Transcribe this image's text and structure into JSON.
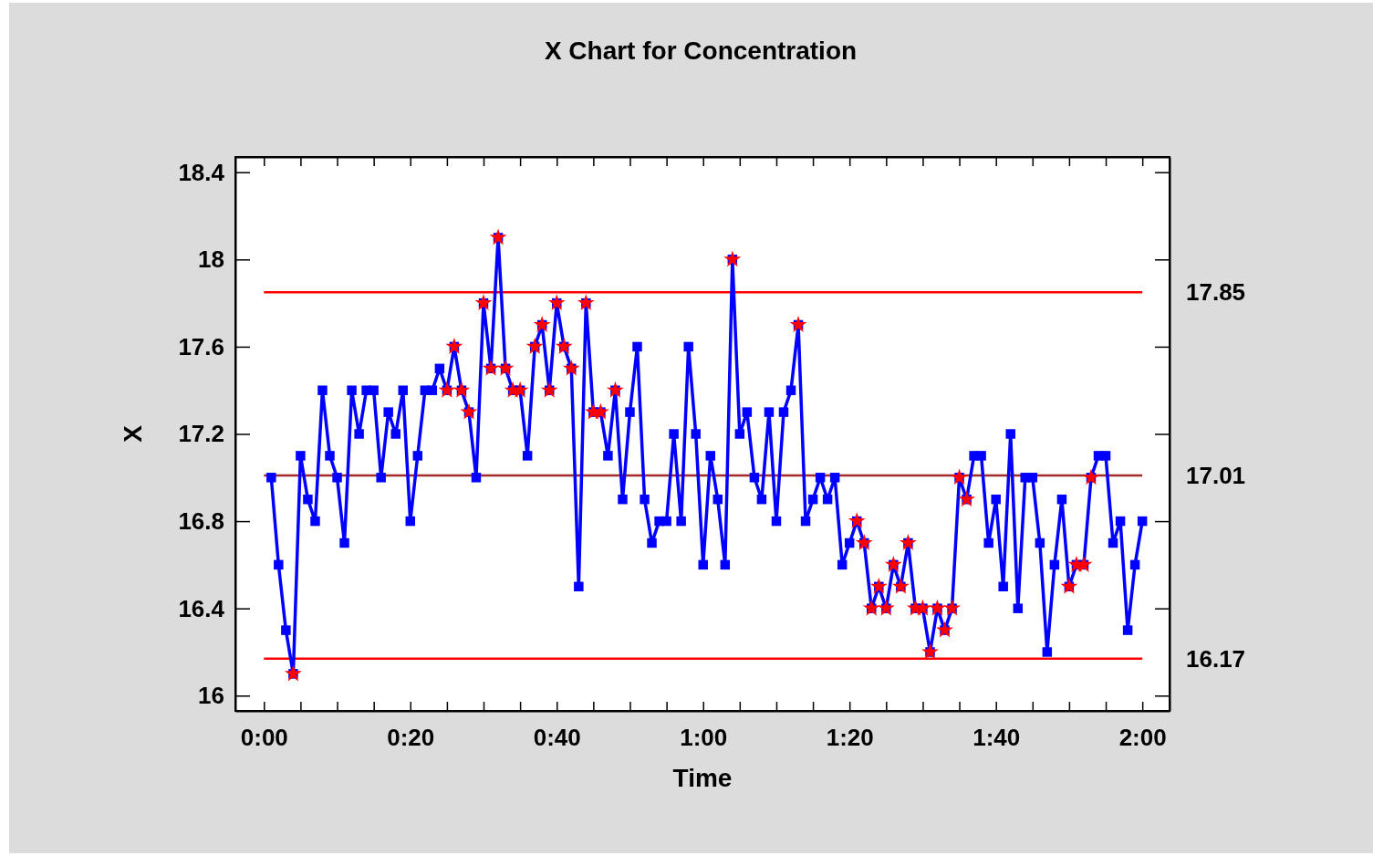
{
  "chart_data": {
    "type": "line",
    "title": "X Chart for Concentration",
    "xlabel": "Time",
    "ylabel": "X",
    "x": [
      0.0167,
      0.0333,
      0.05,
      0.0667,
      0.0833,
      0.1,
      0.1167,
      0.1333,
      0.15,
      0.1667,
      0.1833,
      0.2,
      0.2167,
      0.2333,
      0.25,
      0.2667,
      0.2833,
      0.3,
      0.3167,
      0.3333,
      0.35,
      0.3667,
      0.3833,
      0.4,
      0.4167,
      0.4333,
      0.45,
      0.4667,
      0.4833,
      0.5,
      0.5167,
      0.5333,
      0.55,
      0.5667,
      0.5833,
      0.6,
      0.6167,
      0.6333,
      0.65,
      0.6667,
      0.6833,
      0.7,
      0.7167,
      0.7333,
      0.75,
      0.7667,
      0.7833,
      0.8,
      0.8167,
      0.8333,
      0.85,
      0.8667,
      0.8833,
      0.9,
      0.9167,
      0.9333,
      0.95,
      0.9667,
      0.9833,
      1,
      1.0167,
      1.0333,
      1.05,
      1.0667,
      1.0833,
      1.1,
      1.1167,
      1.1333,
      1.15,
      1.1667,
      1.1833,
      1.2,
      1.2167,
      1.2333,
      1.25,
      1.2667,
      1.2833,
      1.3,
      1.3167,
      1.3333,
      1.35,
      1.3667,
      1.3833,
      1.4,
      1.4167,
      1.4333,
      1.45,
      1.4667,
      1.4833,
      1.5,
      1.5167,
      1.5333,
      1.55,
      1.5667,
      1.5833,
      1.6,
      1.6167,
      1.6333,
      1.65,
      1.6667,
      1.6833,
      1.7,
      1.7167,
      1.7333,
      1.75,
      1.7667,
      1.7833,
      1.8,
      1.8167,
      1.8333,
      1.85,
      1.8667,
      1.8833,
      1.9,
      1.9167,
      1.9333,
      1.95,
      1.9667,
      1.9833,
      2
    ],
    "series": [
      {
        "color": "#0000ff",
        "marker": "square",
        "values": [
          17.0,
          16.6,
          16.3,
          16.1,
          17.1,
          16.9,
          16.8,
          17.4,
          17.1,
          17.0,
          16.7,
          17.4,
          17.2,
          17.4,
          17.4,
          17.0,
          17.3,
          17.2,
          17.4,
          16.8,
          17.1,
          17.4,
          17.4,
          17.5,
          17.4,
          17.6,
          17.4,
          17.3,
          17.0,
          17.8,
          17.5,
          18.1,
          17.5,
          17.4,
          17.4,
          17.1,
          17.6,
          17.7,
          17.4,
          17.8,
          17.6,
          17.5,
          16.5,
          17.8,
          17.3,
          17.3,
          17.1,
          17.4,
          16.9,
          17.3,
          17.6,
          16.9,
          16.7,
          16.8,
          16.8,
          17.2,
          16.8,
          17.6,
          17.2,
          16.6,
          17.1,
          16.9,
          16.6,
          18.0,
          17.2,
          17.3,
          17.0,
          16.9,
          17.3,
          16.8,
          17.3,
          17.4,
          17.7,
          16.8,
          16.9,
          17.0,
          16.9,
          17.0,
          16.6,
          16.7,
          16.8,
          16.7,
          16.4,
          16.5,
          16.4,
          16.6,
          16.5,
          16.7,
          16.4,
          16.4,
          16.2,
          16.4,
          16.3,
          16.4,
          17.0,
          16.9,
          17.1,
          17.1,
          16.7,
          16.9,
          16.5,
          17.2,
          16.4,
          17.0,
          17.0,
          16.7,
          16.2,
          16.6,
          16.9,
          16.5,
          16.6,
          16.6,
          17.0,
          17.1,
          17.1,
          16.7,
          16.8,
          16.3,
          16.6,
          16.8
        ]
      },
      {
        "type": "scatter",
        "color": "#ff0000",
        "marker": "star",
        "values": [
          null,
          null,
          null,
          16.1,
          null,
          null,
          null,
          null,
          null,
          null,
          null,
          null,
          null,
          null,
          null,
          null,
          null,
          null,
          null,
          null,
          null,
          null,
          null,
          null,
          17.4,
          17.6,
          17.4,
          17.3,
          null,
          17.8,
          17.5,
          18.1,
          17.5,
          17.4,
          17.4,
          null,
          17.6,
          17.7,
          17.4,
          17.8,
          17.6,
          17.5,
          null,
          17.8,
          17.3,
          17.3,
          null,
          17.4,
          null,
          null,
          null,
          null,
          null,
          null,
          null,
          null,
          null,
          null,
          null,
          null,
          null,
          null,
          null,
          18.0,
          null,
          null,
          null,
          null,
          null,
          null,
          null,
          null,
          17.7,
          null,
          null,
          null,
          null,
          null,
          null,
          null,
          16.8,
          16.7,
          16.4,
          16.5,
          16.4,
          16.6,
          16.5,
          16.7,
          16.4,
          16.4,
          16.2,
          16.4,
          16.3,
          16.4,
          17.0,
          16.9,
          null,
          null,
          null,
          null,
          null,
          null,
          null,
          null,
          null,
          null,
          null,
          null,
          null,
          16.5,
          16.6,
          16.6,
          17.0,
          null,
          null,
          null,
          null,
          null,
          null,
          null
        ]
      }
    ],
    "xlim": [
      -0.065,
      2.062
    ],
    "xticks": [
      {
        "value": 0,
        "label": "0:00"
      },
      {
        "value": 0.0833,
        "label": null
      },
      {
        "value": 0.1667,
        "label": null
      },
      {
        "value": 0.25,
        "label": null
      },
      {
        "value": 0.3333,
        "label": "0:20"
      },
      {
        "value": 0.4167,
        "label": null
      },
      {
        "value": 0.5,
        "label": null
      },
      {
        "value": 0.5833,
        "label": null
      },
      {
        "value": 0.6667,
        "label": "0:40"
      },
      {
        "value": 0.75,
        "label": null
      },
      {
        "value": 0.8333,
        "label": null
      },
      {
        "value": 0.9167,
        "label": null
      },
      {
        "value": 1,
        "label": "1:00"
      },
      {
        "value": 1.0833,
        "label": null
      },
      {
        "value": 1.1667,
        "label": null
      },
      {
        "value": 1.25,
        "label": null
      },
      {
        "value": 1.3333,
        "label": "1:20"
      },
      {
        "value": 1.4167,
        "label": null
      },
      {
        "value": 1.5,
        "label": null
      },
      {
        "value": 1.5833,
        "label": null
      },
      {
        "value": 1.6667,
        "label": "1:40"
      },
      {
        "value": 1.75,
        "label": null
      },
      {
        "value": 1.8333,
        "label": null
      },
      {
        "value": 1.9167,
        "label": null
      },
      {
        "value": 2,
        "label": "2:00"
      }
    ],
    "ylim": [
      15.93,
      18.47
    ],
    "yticks": [
      16,
      16.4,
      16.8,
      17.2,
      17.6,
      18,
      18.4
    ],
    "ref_lines": [
      {
        "axis": "y",
        "value": 17.85,
        "label": "17.85",
        "color": "#ff0000"
      },
      {
        "axis": "y",
        "value": 17.01,
        "label": "17.01",
        "color": "#a52a2a"
      },
      {
        "axis": "y",
        "value": 16.17,
        "label": "16.17",
        "color": "#ff0000"
      }
    ]
  }
}
